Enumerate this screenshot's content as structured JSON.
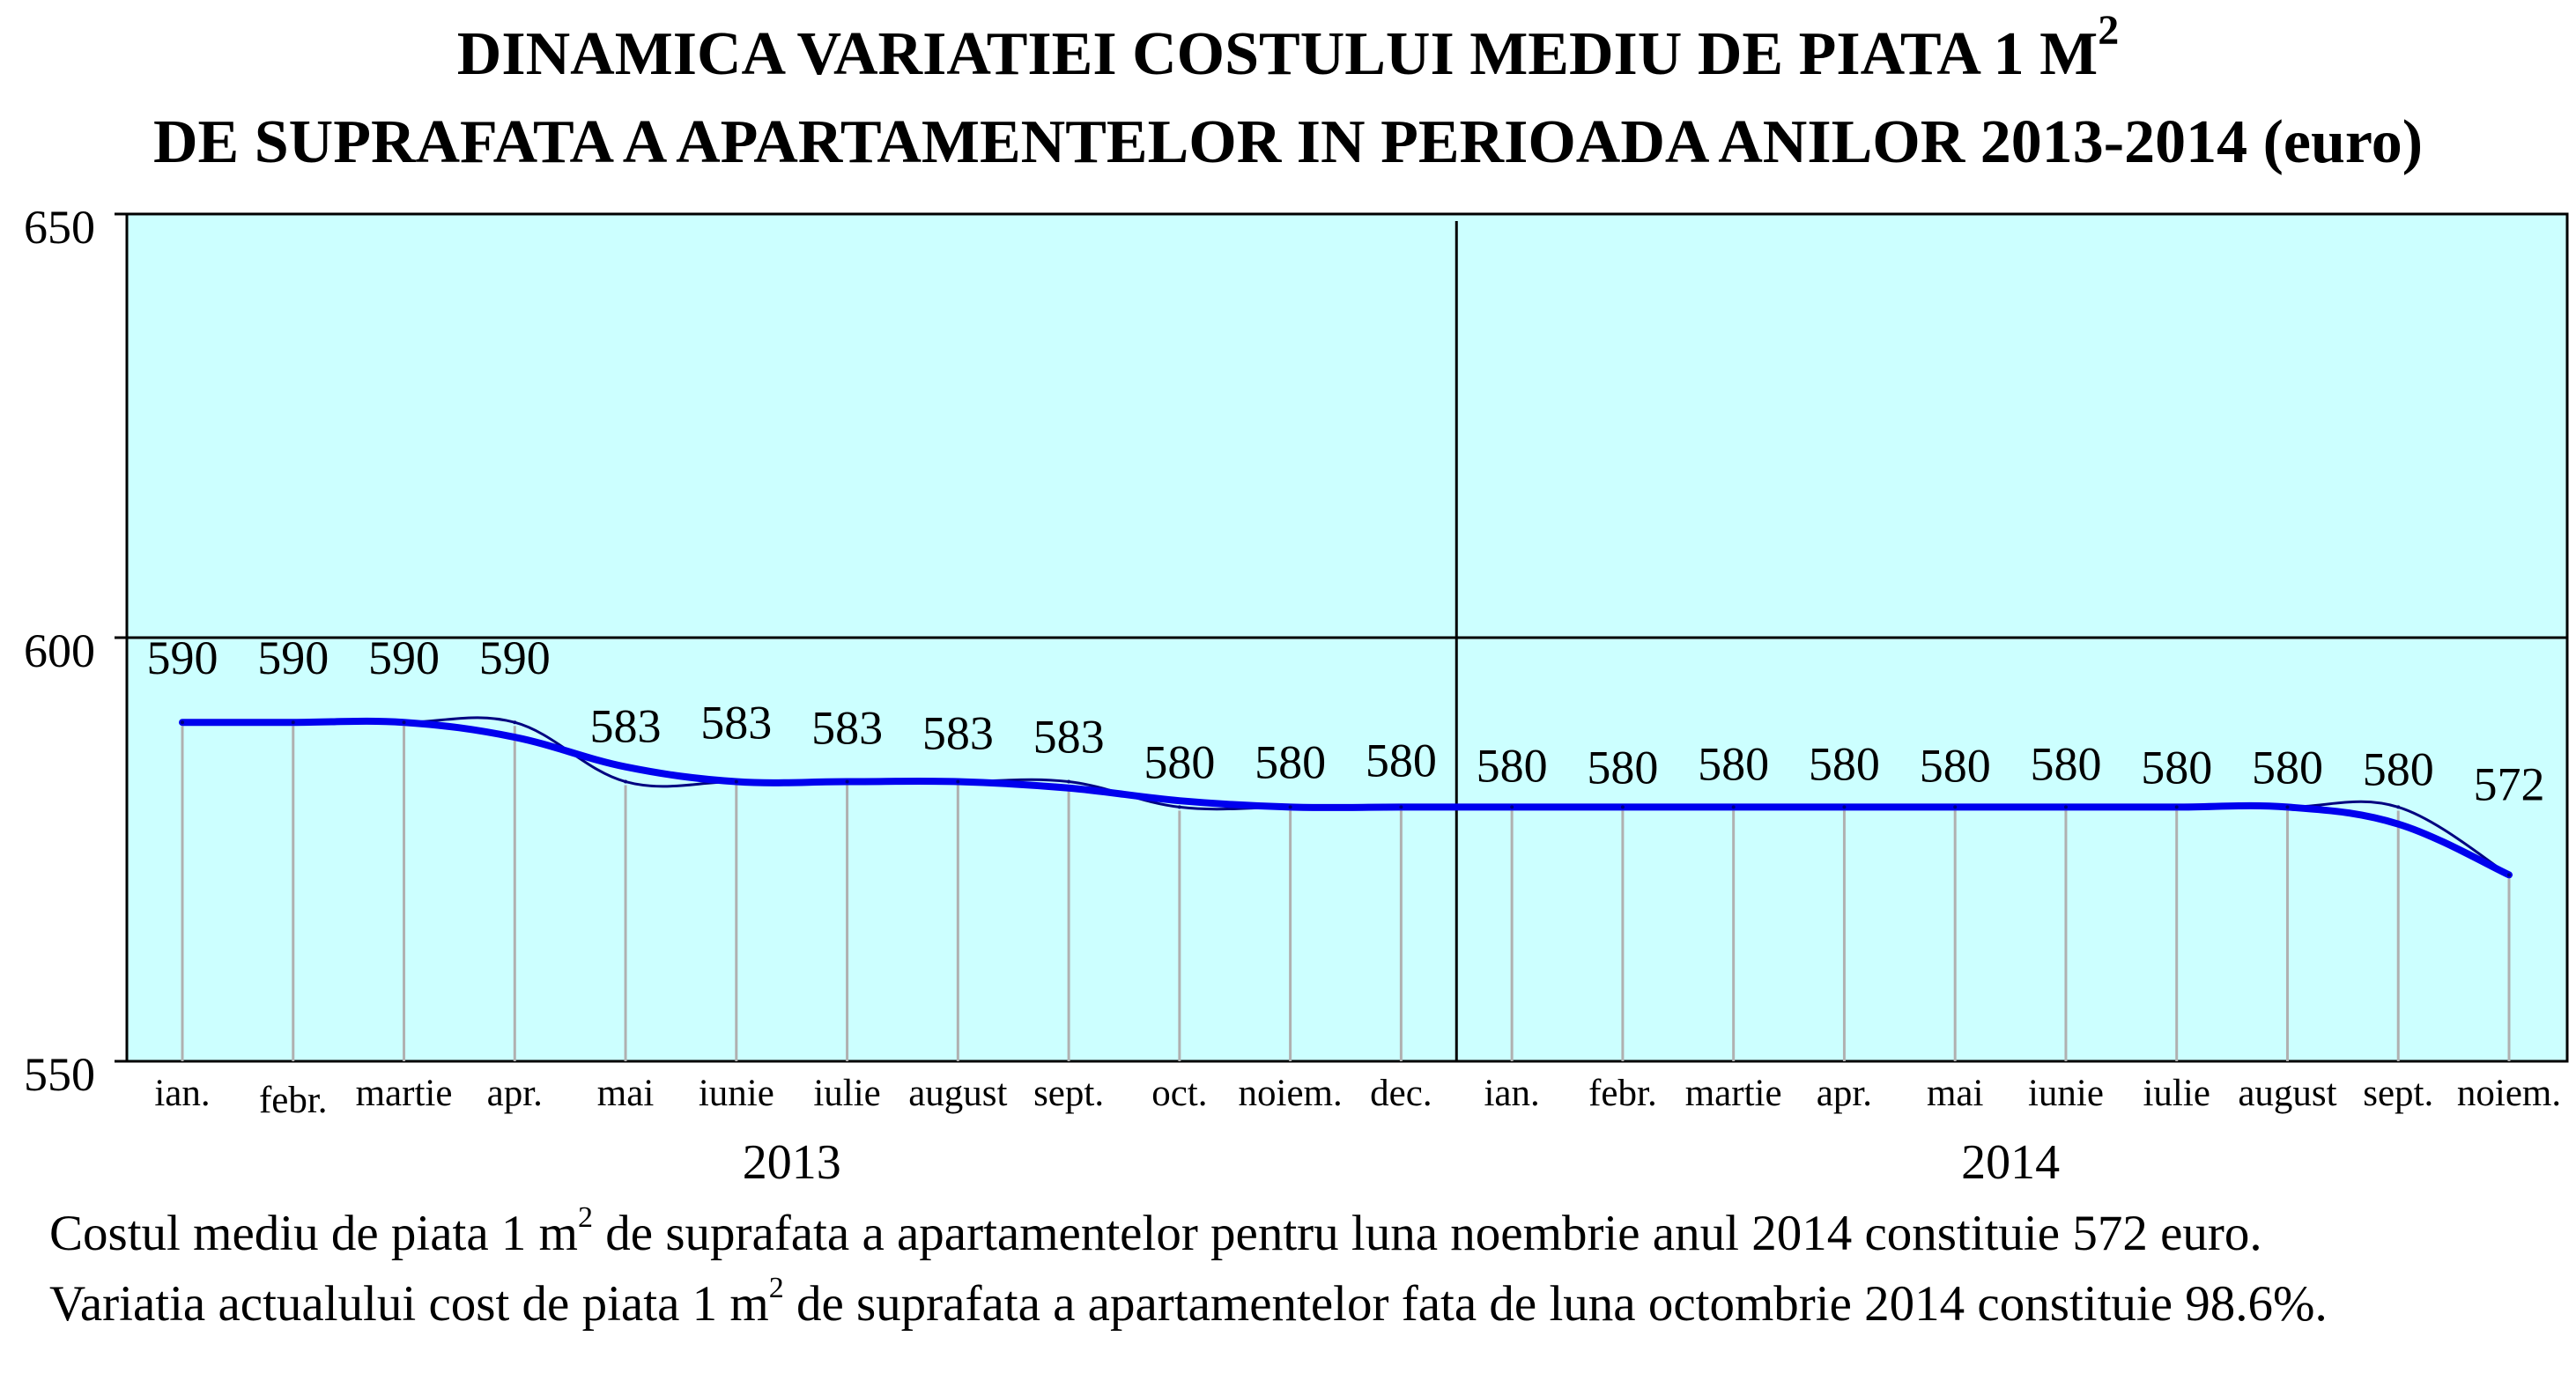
{
  "title": {
    "line1_text": "DINAMICA VARIATIEI COSTULUI MEDIU DE PIATA 1 M",
    "line1_sup": "2",
    "line2_text": "DE SUPRAFATA A APARTAMENTELOR IN PERIOADA ANILOR 2013-2014",
    "line2_unit": " (euro)"
  },
  "chart_data": {
    "type": "line",
    "ylim": [
      550,
      650
    ],
    "y_ticks": [
      650,
      600,
      550
    ],
    "grid_y": [
      600
    ],
    "year_labels": [
      "2013",
      "2014"
    ],
    "months": [
      "ian.",
      "febr.",
      "martie",
      "apr.",
      "mai",
      "iunie",
      "iulie",
      "august",
      "sept.",
      "oct.",
      "noiem.",
      "dec.",
      "ian.",
      "febr.",
      "martie",
      "apr.",
      "mai",
      "iunie",
      "iulie",
      "august",
      "sept.",
      "noiem."
    ],
    "year_of_point": [
      "2013",
      "2013",
      "2013",
      "2013",
      "2013",
      "2013",
      "2013",
      "2013",
      "2013",
      "2013",
      "2013",
      "2013",
      "2014",
      "2014",
      "2014",
      "2014",
      "2014",
      "2014",
      "2014",
      "2014",
      "2014",
      "2014"
    ],
    "series": [
      {
        "values": [
          590,
          590,
          590,
          590,
          583,
          583,
          583,
          583,
          583,
          580,
          580,
          580,
          580,
          580,
          580,
          580,
          580,
          580,
          580,
          580,
          580,
          572
        ]
      }
    ],
    "data_labels": [
      "590",
      "590",
      "590",
      "590",
      "583",
      "583",
      "583",
      "583",
      "583",
      "580",
      "580",
      "580",
      "580",
      "580",
      "580",
      "580",
      "580",
      "580",
      "580",
      "580",
      "580",
      "572"
    ],
    "colors": {
      "plot_bg": "#ccffff",
      "trend_line": "#0000ee",
      "data_line": "#000080",
      "drop_lines": "#b0b0b0",
      "axis": "#000000"
    }
  },
  "notes": {
    "line1_a": "Costul mediu de piata 1 m",
    "line1_sup": "2",
    "line1_b": " de suprafata a apartamentelor pentru luna noembrie anul 2014 constituie 572 euro.",
    "line2_a": "Variatia actualului cost de piata 1 m",
    "line2_sup": "2",
    "line2_b": " de suprafata a apartamentelor fata de luna octombrie 2014 constituie 98.6%."
  }
}
